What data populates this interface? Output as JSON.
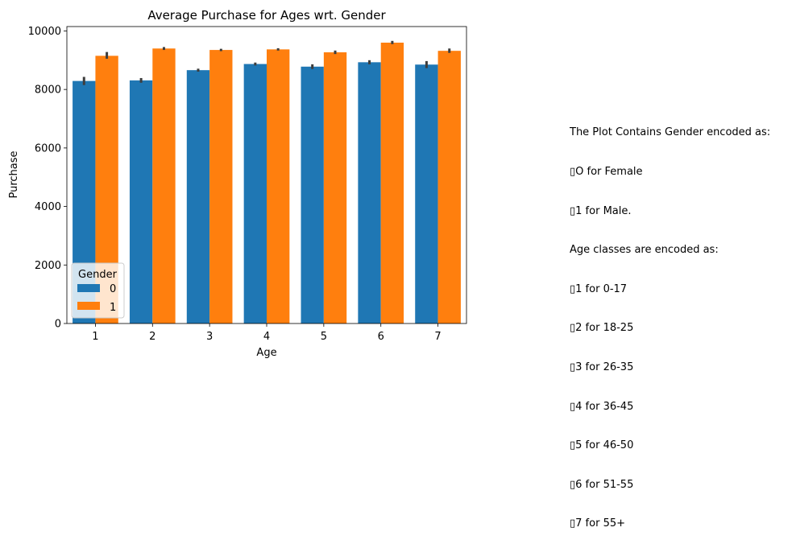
{
  "chart_data": {
    "type": "bar",
    "title": "Average Purchase for Ages wrt. Gender",
    "xlabel": "Age",
    "ylabel": "Purchase",
    "ylim": [
      0,
      10150
    ],
    "yticks": [
      0,
      2000,
      4000,
      6000,
      8000,
      10000
    ],
    "categories": [
      "1",
      "2",
      "3",
      "4",
      "5",
      "6",
      "7"
    ],
    "legend_title": "Gender",
    "legend_position": "lower-left",
    "series": [
      {
        "name": "0",
        "color": "#1f77b4",
        "values": [
          8290,
          8310,
          8660,
          8870,
          8780,
          8930,
          8850
        ],
        "err_low": [
          8150,
          8230,
          8610,
          8820,
          8700,
          8860,
          8730
        ],
        "err_high": [
          8430,
          8390,
          8710,
          8920,
          8860,
          9000,
          8970
        ]
      },
      {
        "name": "1",
        "color": "#ff7f0e",
        "values": [
          9150,
          9400,
          9350,
          9370,
          9270,
          9600,
          9320
        ],
        "err_low": [
          9050,
          9350,
          9310,
          9330,
          9210,
          9550,
          9250
        ],
        "err_high": [
          9280,
          9450,
          9390,
          9410,
          9330,
          9660,
          9400
        ]
      }
    ]
  },
  "side_note": {
    "lines": [
      "The Plot Contains Gender encoded as:",
      "▯O for Female",
      "▯1 for Male.",
      "Age classes are encoded as:",
      "▯1 for 0-17",
      "▯2 for 18-25",
      "▯3 for 26-35",
      "▯4 for 36-45",
      "▯5 for 46-50",
      "▯6 for 51-55",
      "▯7 for 55+"
    ]
  }
}
